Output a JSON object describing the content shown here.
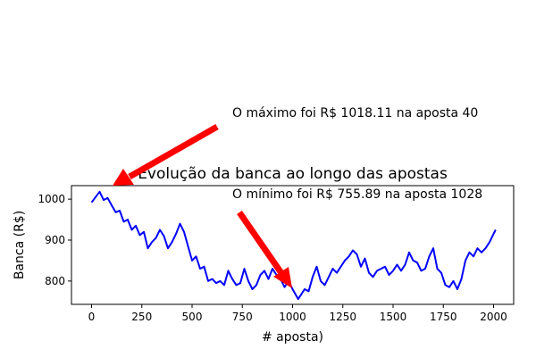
{
  "chart_data": {
    "type": "line",
    "title": "Evolução da banca ao longo das apostas",
    "xlabel": "# aposta)",
    "ylabel": "Banca (R$)",
    "xlim": [
      -100,
      2100
    ],
    "ylim": [
      743,
      1033
    ],
    "xticks": [
      0,
      250,
      500,
      750,
      1000,
      1250,
      1500,
      1750,
      2000
    ],
    "yticks": [
      800,
      900,
      1000
    ],
    "grid": false,
    "series": [
      {
        "name": "Banca",
        "color": "#0000ff",
        "x": [
          0,
          20,
          40,
          60,
          80,
          100,
          120,
          140,
          160,
          180,
          200,
          220,
          240,
          260,
          280,
          300,
          320,
          340,
          360,
          380,
          400,
          420,
          440,
          460,
          480,
          500,
          520,
          540,
          560,
          580,
          600,
          620,
          640,
          660,
          680,
          700,
          720,
          740,
          760,
          780,
          800,
          820,
          840,
          860,
          880,
          900,
          920,
          940,
          960,
          980,
          1000,
          1028,
          1040,
          1060,
          1080,
          1100,
          1120,
          1140,
          1160,
          1180,
          1200,
          1220,
          1240,
          1260,
          1280,
          1300,
          1320,
          1340,
          1360,
          1380,
          1400,
          1420,
          1440,
          1460,
          1480,
          1500,
          1520,
          1540,
          1560,
          1580,
          1600,
          1620,
          1640,
          1660,
          1680,
          1700,
          1720,
          1740,
          1760,
          1780,
          1800,
          1820,
          1840,
          1860,
          1880,
          1900,
          1920,
          1940,
          1960,
          1980,
          2000,
          2010
        ],
        "values": [
          992,
          1005,
          1018.11,
          998,
          1003,
          985,
          968,
          972,
          945,
          950,
          925,
          935,
          912,
          920,
          880,
          895,
          905,
          925,
          910,
          880,
          895,
          915,
          940,
          920,
          885,
          850,
          860,
          830,
          835,
          800,
          805,
          795,
          800,
          790,
          825,
          805,
          790,
          795,
          830,
          800,
          780,
          790,
          815,
          825,
          805,
          830,
          815,
          805,
          785,
          800,
          780,
          755.89,
          765,
          780,
          775,
          810,
          835,
          800,
          790,
          810,
          830,
          820,
          835,
          850,
          860,
          875,
          865,
          835,
          855,
          820,
          810,
          825,
          830,
          835,
          815,
          825,
          840,
          825,
          840,
          870,
          850,
          845,
          825,
          830,
          860,
          880,
          830,
          820,
          790,
          785,
          800,
          780,
          805,
          850,
          870,
          860,
          880,
          870,
          880,
          895,
          915,
          925
        ]
      }
    ],
    "annotations": [
      {
        "text": "O máximo foi R$ 1018.11 na aposta 40",
        "x": 40,
        "y": 1018.11,
        "arrow": true
      },
      {
        "text": "O mínimo foi R$ 755.89 na aposta 1028",
        "x": 1028,
        "y": 755.89,
        "arrow": true
      }
    ]
  }
}
